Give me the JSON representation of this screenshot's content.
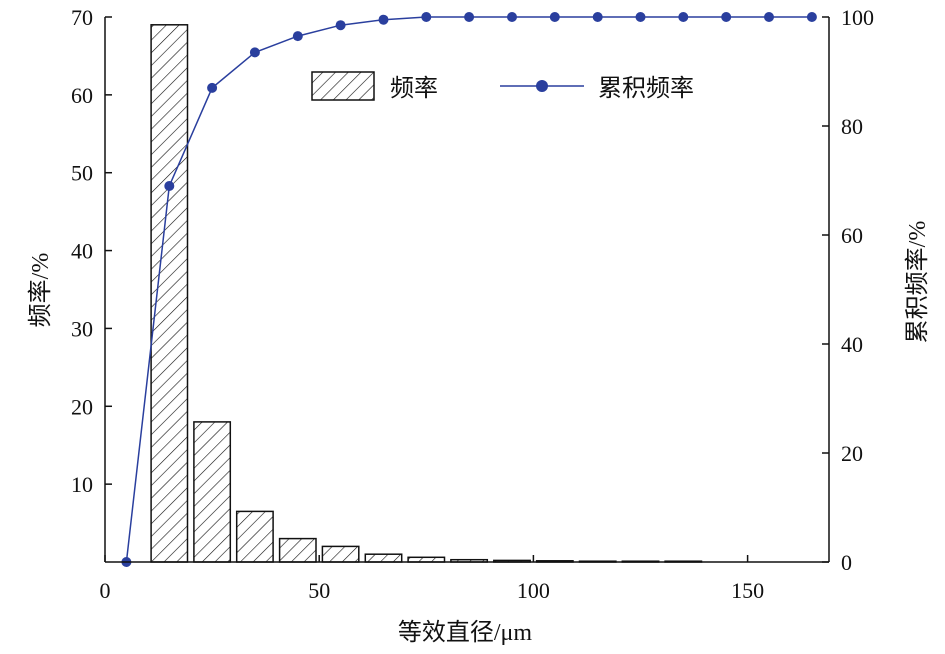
{
  "chart_data": {
    "type": "bar",
    "xlabel": "等效直径/μm",
    "ylabel_left": "频率/%",
    "ylabel_right": "累积频率/%",
    "x_ticks": [
      0,
      50,
      100,
      150
    ],
    "y_left_ticks": [
      10,
      20,
      30,
      40,
      50,
      60,
      70
    ],
    "y_right_ticks": [
      0,
      20,
      40,
      60,
      80,
      100
    ],
    "xlim": [
      0,
      169
    ],
    "ylim_left": [
      0,
      70
    ],
    "ylim_right": [
      0,
      100
    ],
    "bar_width": 8.5,
    "grid": false,
    "legend_position": "top-center",
    "series": [
      {
        "name": "频率",
        "type": "bar",
        "pattern": "diagonal-hatch",
        "color": "#111111",
        "x": [
          15,
          25,
          35,
          45,
          55,
          65,
          75,
          85,
          95,
          105,
          115,
          125,
          135
        ],
        "values": [
          69,
          18,
          6.5,
          3,
          2,
          1,
          0.6,
          0.3,
          0.2,
          0.15,
          0.1,
          0.1,
          0.1
        ]
      },
      {
        "name": "累积频率",
        "type": "line",
        "color": "#2a3f9e",
        "x": [
          5,
          15,
          25,
          35,
          45,
          55,
          65,
          75,
          85,
          95,
          105,
          115,
          125,
          135,
          145,
          155,
          165
        ],
        "values": [
          0,
          69,
          87,
          93.5,
          96.5,
          98.5,
          99.5,
          100,
          100,
          100,
          100,
          100,
          100,
          100,
          100,
          100,
          100
        ]
      }
    ]
  }
}
